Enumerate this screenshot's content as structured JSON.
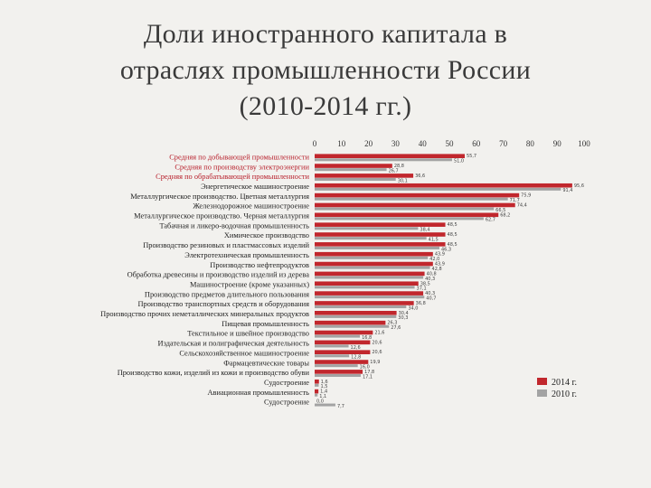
{
  "title": {
    "line1": "Доли иностранного капитала в",
    "line2": "отраслях промышленности России",
    "line3": "(2010-2014 гг.)"
  },
  "chart_data": {
    "type": "bar",
    "orientation": "horizontal",
    "title": "Доли иностранного капитала в отраслях промышленности России (2010-2014 гг.)",
    "xlim": [
      0,
      100
    ],
    "x_ticks": [
      "0",
      "10",
      "20",
      "30",
      "40",
      "50",
      "60",
      "70",
      "80",
      "90",
      "100"
    ],
    "legend": {
      "position": "right",
      "entries": [
        "2014 г.",
        "2010 г."
      ]
    },
    "colors": {
      "2014": "#c1272d",
      "2010": "#a3a3a3"
    },
    "highlight_count": 3,
    "categories": [
      "Средняя по добывающей промышленности",
      "Средняя по производству электроэнергии",
      "Средняя по обрабатывающей промышленности",
      "Энергетическое машиностроение",
      "Металлургическое производство. Цветная металлургия",
      "Железнодорожное машиностроение",
      "Металлургическое производство. Черная металлургия",
      "Табачная и ликеро-водочная промышленность",
      "Химическое производство",
      "Производство резиновых и пластмассовых изделий",
      "Электротехническая промышленность",
      "Производство нефтепродуктов",
      "Обработка древесины и производство изделий из дерева",
      "Машиностроение (кроме указанных)",
      "Производство предметов длительного пользования",
      "Производство транспортных средств и оборудования",
      "Производство прочих неметаллических минеральных продуктов",
      "Пищевая промышленность",
      "Текстильное и швейное производство",
      "Издательская и полиграфическая деятельность",
      "Сельскохозяйственное машиностроение",
      "Фармацевтические товары",
      "Производство кожи, изделий из кожи и производство обуви",
      "Судостроение",
      "Авиационная промышленность",
      "Судостроение"
    ],
    "series": [
      {
        "name": "2014 г.",
        "values": [
          55.7,
          28.8,
          36.6,
          95.6,
          75.9,
          74.4,
          68.2,
          48.5,
          48.5,
          48.5,
          43.9,
          43.9,
          40.8,
          38.5,
          40.3,
          36.8,
          30.4,
          26.3,
          21.6,
          20.6,
          20.6,
          19.9,
          17.8,
          1.6,
          1.4,
          0.0
        ],
        "labels": [
          "55,7",
          "28,8",
          "36,6",
          "95,6",
          "75,9",
          "74,4",
          "68,2",
          "48,5",
          "48,5",
          "48,5",
          "43,9",
          "43,9",
          "40,8",
          "38,5",
          "40,3",
          "36,8",
          "30,4",
          "26,3",
          "21,6",
          "20,6",
          "20,6",
          "19,9",
          "17,8",
          "1,6",
          "1,4",
          "0,0"
        ]
      },
      {
        "name": "2010 г.",
        "values": [
          51.0,
          26.7,
          30.1,
          91.4,
          71.7,
          66.5,
          62.7,
          38.4,
          41.5,
          46.3,
          42.0,
          42.8,
          40.3,
          37.1,
          40.7,
          34.0,
          30.3,
          27.6,
          16.8,
          12.6,
          12.8,
          16.0,
          17.1,
          1.5,
          1.1,
          7.7
        ],
        "labels": [
          "51,0",
          "26,7",
          "30,1",
          "91,4",
          "71,7",
          "66,5",
          "62,7",
          "38,4",
          "41,5",
          "46,3",
          "42,0",
          "42,8",
          "40,3",
          "37,1",
          "40,7",
          "34,0",
          "30,3",
          "27,6",
          "16,8",
          "12,6",
          "12,8",
          "16,0",
          "17,1",
          "1,5",
          "1,1",
          "7,7"
        ]
      }
    ]
  }
}
